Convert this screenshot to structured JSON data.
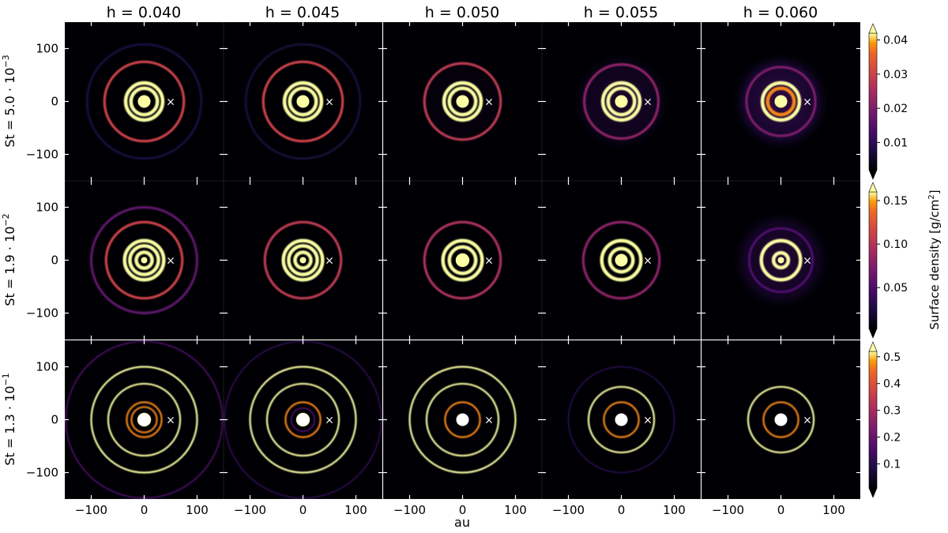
{
  "chart_data": {
    "type": "heatmap",
    "description_free": true,
    "column_titles": [
      "h = 0.040",
      "h = 0.045",
      "h = 0.050",
      "h = 0.055",
      "h = 0.060"
    ],
    "row_labels": [
      "St = 5.0 · 10",
      "St = 1.9 · 10",
      "St = 1.3 · 10"
    ],
    "row_label_exponents": [
      "−3",
      "−2",
      "−1"
    ],
    "xlabel": "au",
    "x_ticks": [
      -100,
      0,
      100
    ],
    "y_ticks": [
      100,
      0,
      -100
    ],
    "xlim": [
      -150,
      150
    ],
    "ylim": [
      -150,
      150
    ],
    "planet_position_au": [
      50,
      0
    ],
    "planet_marker": "×",
    "colormap": "inferno",
    "colorbar_label": "Surface density [g/cm²]",
    "colorbar_label_parts": {
      "main": "Surface density [g/cm",
      "sup": "2",
      "end": "]"
    },
    "colorbars": [
      {
        "vmin": 0.002,
        "vmax": 0.042,
        "ticks": [
          0.01,
          0.02,
          0.03,
          0.04
        ],
        "tick_labels": [
          "0.01",
          "0.02",
          "0.03",
          "0.04"
        ]
      },
      {
        "vmin": 0.003,
        "vmax": 0.16,
        "ticks": [
          0.05,
          0.1,
          0.15
        ],
        "tick_labels": [
          "0.05",
          "0.10",
          "0.15"
        ]
      },
      {
        "vmin": 0.01,
        "vmax": 0.52,
        "ticks": [
          0.1,
          0.2,
          0.3,
          0.4,
          0.5
        ],
        "tick_labels": [
          "0.1",
          "0.2",
          "0.3",
          "0.4",
          "0.5"
        ]
      }
    ],
    "panels": [
      [
        {
          "halo": 0.0,
          "rings": [
            {
              "r": 75,
              "v": 0.7
            },
            {
              "r": 108,
              "v": 0.12
            },
            {
              "r": 35,
              "v": 1.0
            },
            {
              "r": 25,
              "v": 1.0
            },
            {
              "r": 12,
              "v": 1.0
            },
            {
              "r": 6,
              "v": 1.0
            }
          ]
        },
        {
          "halo": 0.0,
          "rings": [
            {
              "r": 75,
              "v": 0.7
            },
            {
              "r": 108,
              "v": 0.1
            },
            {
              "r": 35,
              "v": 1.0
            },
            {
              "r": 25,
              "v": 1.0
            },
            {
              "r": 12,
              "v": 1.0
            },
            {
              "r": 6,
              "v": 1.0
            }
          ]
        },
        {
          "halo": 0.05,
          "rings": [
            {
              "r": 72,
              "v": 0.65
            },
            {
              "r": 35,
              "v": 1.0
            },
            {
              "r": 25,
              "v": 1.0
            },
            {
              "r": 12,
              "v": 1.0
            },
            {
              "r": 6,
              "v": 1.0
            }
          ]
        },
        {
          "halo": 0.18,
          "rings": [
            {
              "r": 70,
              "v": 0.5
            },
            {
              "r": 35,
              "v": 1.0
            },
            {
              "r": 25,
              "v": 1.0
            },
            {
              "r": 12,
              "v": 1.0
            },
            {
              "r": 6,
              "v": 1.0
            }
          ]
        },
        {
          "halo": 0.3,
          "rings": [
            {
              "r": 65,
              "v": 0.45
            },
            {
              "r": 35,
              "v": 1.0
            },
            {
              "r": 25,
              "v": 0.9
            },
            {
              "r": 12,
              "v": 1.0
            },
            {
              "r": 6,
              "v": 1.0
            }
          ]
        }
      ],
      [
        {
          "halo": 0.0,
          "rings": [
            {
              "r": 100,
              "v": 0.35
            },
            {
              "r": 72,
              "v": 0.7
            },
            {
              "r": 37,
              "v": 1.0
            },
            {
              "r": 27,
              "v": 1.0
            },
            {
              "r": 15,
              "v": 1.0
            },
            {
              "r": 6,
              "v": 1.0
            }
          ]
        },
        {
          "halo": 0.0,
          "rings": [
            {
              "r": 72,
              "v": 0.65
            },
            {
              "r": 37,
              "v": 1.0
            },
            {
              "r": 27,
              "v": 1.0
            },
            {
              "r": 15,
              "v": 1.0
            },
            {
              "r": 6,
              "v": 1.0
            }
          ]
        },
        {
          "halo": 0.0,
          "rings": [
            {
              "r": 72,
              "v": 0.6
            },
            {
              "r": 37,
              "v": 1.0
            },
            {
              "r": 25,
              "v": 1.0
            },
            {
              "r": 13,
              "v": 1.0
            },
            {
              "r": 6,
              "v": 1.0
            }
          ]
        },
        {
          "halo": 0.0,
          "rings": [
            {
              "r": 72,
              "v": 0.5
            },
            {
              "r": 37,
              "v": 1.0
            },
            {
              "r": 22,
              "v": 1.0
            },
            {
              "r": 12,
              "v": 1.0
            },
            {
              "r": 6,
              "v": 1.0
            }
          ]
        },
        {
          "halo": 0.22,
          "rings": [
            {
              "r": 60,
              "v": 0.3
            },
            {
              "r": 37,
              "v": 1.0
            },
            {
              "r": 14,
              "v": 1.0
            },
            {
              "r": 6,
              "v": 1.0
            }
          ]
        }
      ],
      [
        {
          "halo": 0.0,
          "rings": [
            {
              "r": 148,
              "v": 0.3
            },
            {
              "r": 100,
              "v": 1.0
            },
            {
              "r": 68,
              "v": 1.0
            },
            {
              "r": 33,
              "v": 0.9
            },
            {
              "r": 24,
              "v": 0.9
            },
            {
              "r": 13,
              "v": 1.0
            }
          ]
        },
        {
          "halo": 0.0,
          "rings": [
            {
              "r": 148,
              "v": 0.2
            },
            {
              "r": 100,
              "v": 1.0
            },
            {
              "r": 68,
              "v": 1.0
            },
            {
              "r": 33,
              "v": 0.9
            },
            {
              "r": 22,
              "v": 0.3
            },
            {
              "r": 13,
              "v": 1.0
            }
          ]
        },
        {
          "halo": 0.0,
          "rings": [
            {
              "r": 100,
              "v": 1.0
            },
            {
              "r": 68,
              "v": 1.0
            },
            {
              "r": 33,
              "v": 0.9
            },
            {
              "r": 10,
              "v": 1.0
            }
          ]
        },
        {
          "halo": 0.0,
          "rings": [
            {
              "r": 100,
              "v": 0.18
            },
            {
              "r": 62,
              "v": 1.0
            },
            {
              "r": 33,
              "v": 0.9
            },
            {
              "r": 10,
              "v": 1.0
            }
          ]
        },
        {
          "halo": 0.0,
          "rings": [
            {
              "r": 62,
              "v": 1.0
            },
            {
              "r": 33,
              "v": 0.9
            },
            {
              "r": 10,
              "v": 1.0
            }
          ]
        }
      ]
    ]
  }
}
